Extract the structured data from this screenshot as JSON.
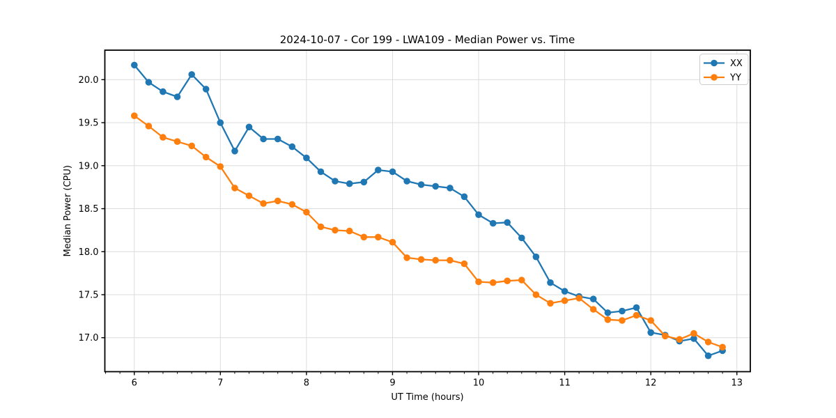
{
  "figure": {
    "title": "2024-10-07 - Cor 199 - LWA109 - Median Power vs. Time",
    "xlabel": "UT Time (hours)",
    "ylabel": "Median Power (CPU)"
  },
  "chart_data": {
    "type": "line",
    "title": "2024-10-07 - Cor 199 - LWA109 - Median Power vs. Time",
    "xlabel": "UT Time (hours)",
    "ylabel": "Median Power (CPU)",
    "xlim": [
      5.658,
      13.156
    ],
    "ylim": [
      16.605,
      20.343
    ],
    "x_ticks": [
      6,
      7,
      8,
      9,
      10,
      11,
      12,
      13
    ],
    "y_ticks": [
      17.0,
      17.5,
      18.0,
      18.5,
      19.0,
      19.5,
      20.0
    ],
    "x_minor_tick_step": 0.16667,
    "grid": true,
    "legend_position": "upper right",
    "x": [
      6,
      6.167,
      6.333,
      6.5,
      6.667,
      6.833,
      7,
      7.167,
      7.333,
      7.5,
      7.667,
      7.833,
      8,
      8.167,
      8.333,
      8.5,
      8.667,
      8.833,
      9,
      9.167,
      9.333,
      9.5,
      9.667,
      9.833,
      10,
      10.167,
      10.333,
      10.5,
      10.667,
      10.833,
      11,
      11.167,
      11.333,
      11.5,
      11.667,
      11.833,
      12,
      12.167,
      12.333,
      12.5,
      12.667,
      12.833
    ],
    "series": [
      {
        "name": "XX",
        "color": "#1f77b4",
        "values": [
          20.17,
          19.97,
          19.86,
          19.8,
          20.06,
          19.89,
          19.5,
          19.17,
          19.45,
          19.31,
          19.31,
          19.22,
          19.09,
          18.93,
          18.82,
          18.79,
          18.81,
          18.95,
          18.93,
          18.82,
          18.78,
          18.76,
          18.74,
          18.64,
          18.43,
          18.33,
          18.34,
          18.16,
          17.94,
          17.64,
          17.54,
          17.48,
          17.45,
          17.29,
          17.31,
          17.35,
          17.06,
          17.03,
          16.96,
          16.99,
          16.79,
          16.85
        ]
      },
      {
        "name": "YY",
        "color": "#ff7f0e",
        "values": [
          19.58,
          19.46,
          19.33,
          19.28,
          19.23,
          19.1,
          18.99,
          18.74,
          18.65,
          18.56,
          18.59,
          18.55,
          18.46,
          18.29,
          18.25,
          18.24,
          18.17,
          18.17,
          18.11,
          17.93,
          17.91,
          17.9,
          17.9,
          17.86,
          17.65,
          17.64,
          17.66,
          17.67,
          17.5,
          17.4,
          17.43,
          17.46,
          17.33,
          17.21,
          17.2,
          17.26,
          17.2,
          17.02,
          16.98,
          17.05,
          16.95,
          16.89
        ]
      }
    ],
    "style": {
      "grid_color": "#dcdcdc",
      "spine_color": "#000000",
      "background": "#ffffff",
      "line_width": 2.3,
      "marker_radius": 4.8
    }
  }
}
